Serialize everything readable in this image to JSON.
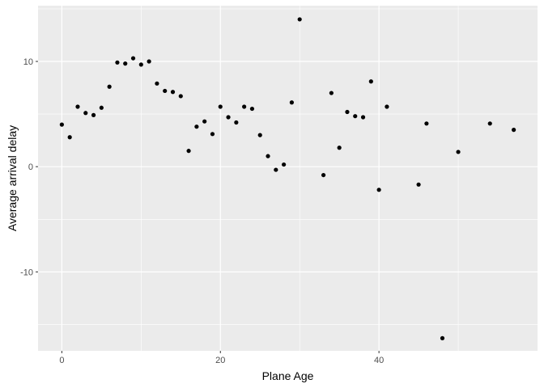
{
  "chart_data": {
    "type": "scatter",
    "xlabel": "Plane Age",
    "ylabel": "Average arrival delay",
    "xlim": [
      -3,
      60
    ],
    "ylim": [
      -17.5,
      15.3
    ],
    "x_ticks": [
      0,
      20,
      40
    ],
    "x_tick_labels": [
      "0",
      "20",
      "40"
    ],
    "y_ticks": [
      -10,
      0,
      10
    ],
    "y_tick_labels": [
      "-10",
      "0",
      "10"
    ],
    "grid": true,
    "panel_color": "#ebebeb",
    "point_color": "#000000",
    "points": [
      {
        "x": 0,
        "y": 4.0
      },
      {
        "x": 1,
        "y": 2.8
      },
      {
        "x": 2,
        "y": 5.7
      },
      {
        "x": 3,
        "y": 5.1
      },
      {
        "x": 4,
        "y": 4.9
      },
      {
        "x": 5,
        "y": 5.6
      },
      {
        "x": 6,
        "y": 7.6
      },
      {
        "x": 7,
        "y": 9.9
      },
      {
        "x": 8,
        "y": 9.8
      },
      {
        "x": 9,
        "y": 10.3
      },
      {
        "x": 10,
        "y": 9.7
      },
      {
        "x": 11,
        "y": 10.0
      },
      {
        "x": 12,
        "y": 7.9
      },
      {
        "x": 13,
        "y": 7.2
      },
      {
        "x": 14,
        "y": 7.1
      },
      {
        "x": 15,
        "y": 6.7
      },
      {
        "x": 16,
        "y": 1.5
      },
      {
        "x": 17,
        "y": 3.8
      },
      {
        "x": 18,
        "y": 4.3
      },
      {
        "x": 19,
        "y": 3.1
      },
      {
        "x": 20,
        "y": 5.7
      },
      {
        "x": 21,
        "y": 4.7
      },
      {
        "x": 22,
        "y": 4.2
      },
      {
        "x": 23,
        "y": 5.7
      },
      {
        "x": 24,
        "y": 5.5
      },
      {
        "x": 25,
        "y": 3.0
      },
      {
        "x": 26,
        "y": 1.0
      },
      {
        "x": 27,
        "y": -0.3
      },
      {
        "x": 28,
        "y": 0.2
      },
      {
        "x": 29,
        "y": 6.1
      },
      {
        "x": 30,
        "y": 14.0
      },
      {
        "x": 33,
        "y": -0.8
      },
      {
        "x": 34,
        "y": 7.0
      },
      {
        "x": 35,
        "y": 1.8
      },
      {
        "x": 36,
        "y": 5.2
      },
      {
        "x": 37,
        "y": 4.8
      },
      {
        "x": 38,
        "y": 4.7
      },
      {
        "x": 39,
        "y": 8.1
      },
      {
        "x": 40,
        "y": -2.2
      },
      {
        "x": 41,
        "y": 5.7
      },
      {
        "x": 45,
        "y": -1.7
      },
      {
        "x": 46,
        "y": 4.1
      },
      {
        "x": 48,
        "y": -16.3
      },
      {
        "x": 50,
        "y": 1.4
      },
      {
        "x": 54,
        "y": 4.1
      },
      {
        "x": 57,
        "y": 3.5
      }
    ]
  }
}
